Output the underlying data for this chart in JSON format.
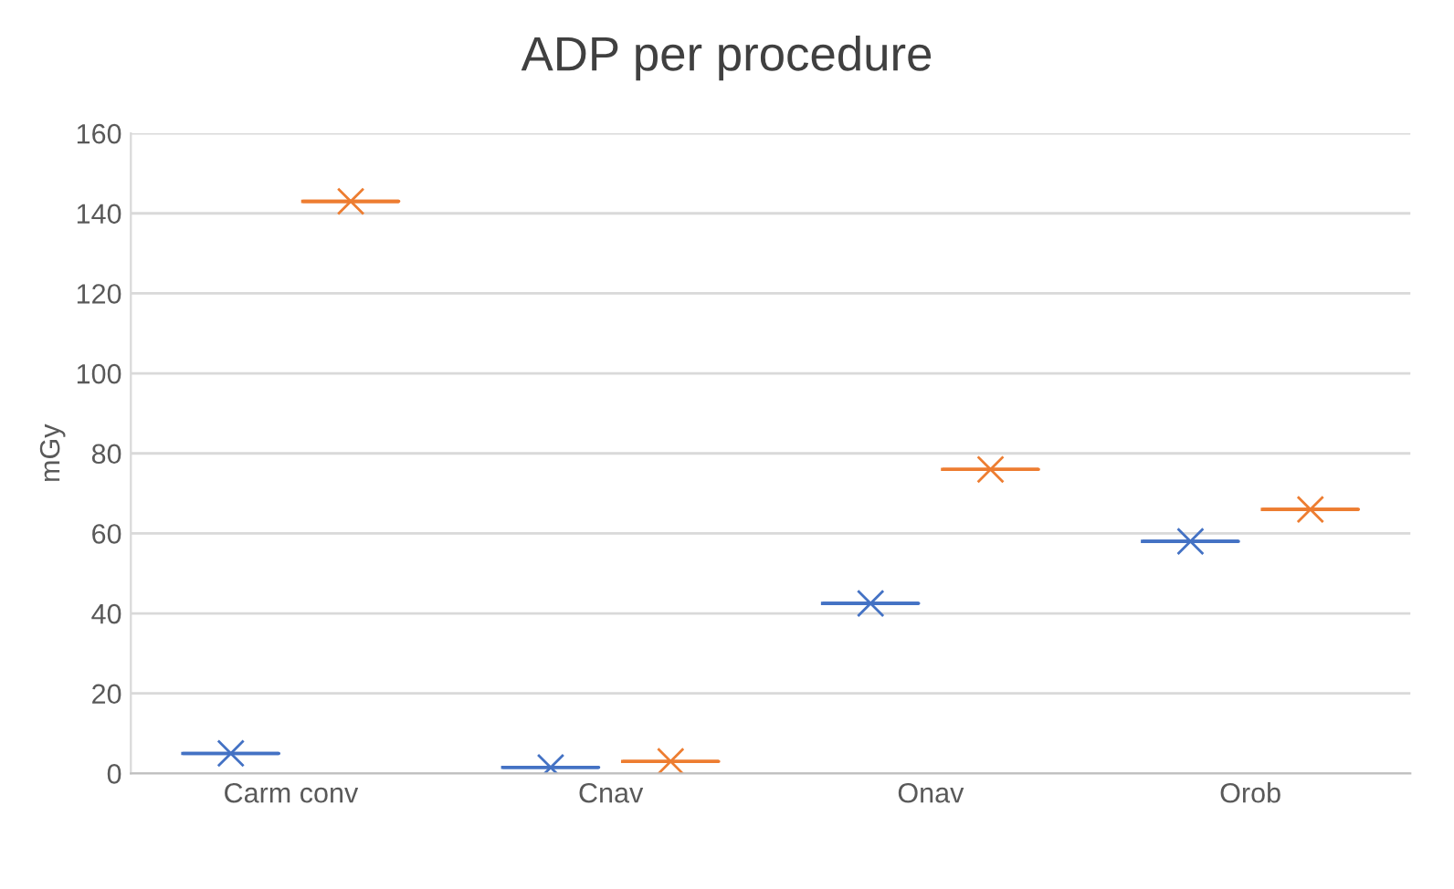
{
  "chart_data": {
    "type": "box",
    "title": "ADP per procedure",
    "ylabel": "mGy",
    "categories": [
      "Carm conv",
      "Cnav",
      "Onav",
      "Orob"
    ],
    "series": [
      {
        "color": "#4472c4",
        "boxes": [
          {
            "low": 5,
            "q1": 5,
            "median": 5,
            "q3": 5,
            "high": 5,
            "mean": 5
          },
          {
            "low": 1.5,
            "q1": 1.5,
            "median": 1.5,
            "q3": 1.5,
            "high": 1.5,
            "mean": 1.5
          },
          {
            "low": 42.5,
            "q1": 42.5,
            "median": 42.5,
            "q3": 42.5,
            "high": 42.5,
            "mean": 42.5
          },
          {
            "low": 58,
            "q1": 58,
            "median": 58,
            "q3": 58,
            "high": 58,
            "mean": 58
          }
        ]
      },
      {
        "color": "#ed7d31",
        "boxes": [
          {
            "low": 143,
            "q1": 143,
            "median": 143,
            "q3": 143,
            "high": 143,
            "mean": 143
          },
          {
            "low": 3,
            "q1": 3,
            "median": 3,
            "q3": 3,
            "high": 3,
            "mean": 3
          },
          {
            "low": 76,
            "q1": 76,
            "median": 76,
            "q3": 76,
            "high": 76,
            "mean": 76
          },
          {
            "low": 66,
            "q1": 66,
            "median": 66,
            "q3": 66,
            "high": 66,
            "mean": 66
          }
        ]
      }
    ],
    "ylim": [
      0,
      160
    ],
    "yticks": [
      0,
      20,
      40,
      60,
      80,
      100,
      120,
      140,
      160
    ],
    "grid": "y",
    "marker": "cross",
    "legend": false
  }
}
